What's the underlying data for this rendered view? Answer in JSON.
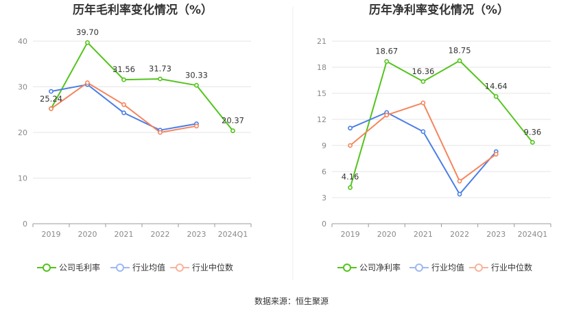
{
  "footer": {
    "source": "数据来源：恒生聚源"
  },
  "chart_data": [
    {
      "type": "line",
      "title": "历年毛利率变化情况（%）",
      "categories": [
        "2019",
        "2020",
        "2021",
        "2022",
        "2023",
        "2024Q1"
      ],
      "ylim": [
        0,
        40
      ],
      "yticks": [
        0,
        10,
        20,
        30,
        40
      ],
      "grid": true,
      "legend_position": "bottom",
      "series": [
        {
          "name": "公司毛利率",
          "color": "#52c41a",
          "labeled": true,
          "values": [
            25.24,
            39.7,
            31.56,
            31.73,
            30.33,
            20.37
          ]
        },
        {
          "name": "行业均值",
          "color": "#4a7ee6",
          "labeled": false,
          "values": [
            29.0,
            30.5,
            24.3,
            20.5,
            21.9,
            null
          ]
        },
        {
          "name": "行业中位数",
          "color": "#f5845c",
          "labeled": false,
          "values": [
            25.2,
            30.9,
            26.1,
            20.0,
            21.4,
            null
          ]
        }
      ]
    },
    {
      "type": "line",
      "title": "历年净利率变化情况（%）",
      "categories": [
        "2019",
        "2020",
        "2021",
        "2022",
        "2023",
        "2024Q1"
      ],
      "ylim": [
        0,
        21
      ],
      "yticks": [
        0,
        3,
        6,
        9,
        12,
        15,
        18,
        21
      ],
      "grid": true,
      "legend_position": "bottom",
      "series": [
        {
          "name": "公司净利率",
          "color": "#52c41a",
          "labeled": true,
          "values": [
            4.16,
            18.67,
            16.36,
            18.75,
            14.64,
            9.36
          ]
        },
        {
          "name": "行业均值",
          "color": "#4a7ee6",
          "labeled": false,
          "values": [
            11.0,
            12.8,
            10.6,
            3.4,
            8.3,
            null
          ]
        },
        {
          "name": "行业中位数",
          "color": "#f5845c",
          "labeled": false,
          "values": [
            9.0,
            12.5,
            13.9,
            4.9,
            8.0,
            null
          ]
        }
      ]
    }
  ]
}
